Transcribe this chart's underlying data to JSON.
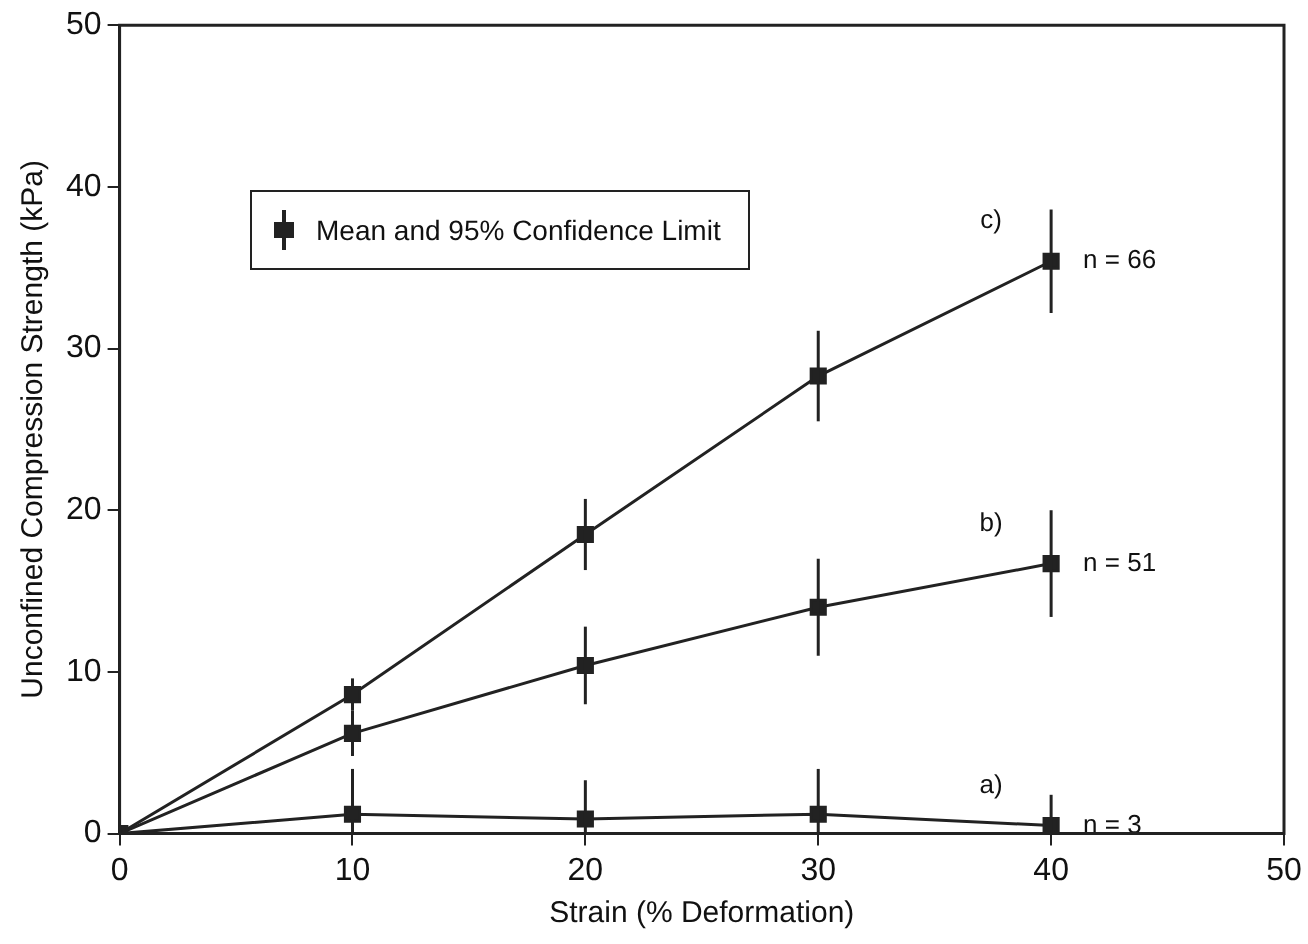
{
  "chart_data": {
    "type": "line",
    "xlabel": "Strain (% Deformation)",
    "ylabel": "Unconfined Compression Strength (kPa)",
    "x": [
      0,
      10,
      20,
      30,
      40
    ],
    "xlim": [
      0,
      50
    ],
    "xticks": [
      0,
      10,
      20,
      30,
      40,
      50
    ],
    "ylim": [
      0,
      50
    ],
    "yticks": [
      0,
      10,
      20,
      30,
      40,
      50
    ],
    "grid": false,
    "legend": false,
    "marker": "square",
    "line_style": "solid",
    "series": [
      {
        "name": "c)",
        "color": "#222222",
        "values": [
          0,
          8.6,
          18.5,
          28.3,
          35.4
        ],
        "errors": [
          null,
          1,
          2.2,
          2.8,
          3.2
        ]
      },
      {
        "name": "b)",
        "color": "#222222",
        "values": [
          0,
          6.2,
          10.4,
          14.0,
          16.7
        ],
        "errors": [
          null,
          1.4,
          2.4,
          3,
          3.3
        ]
      },
      {
        "name": "a)",
        "color": "#222222",
        "values": [
          0,
          1.2,
          0.9,
          1.2,
          0.5
        ],
        "errors": [
          null,
          [
            0,
            4.0
          ],
          [
            0,
            3.3
          ],
          [
            0,
            4.0
          ],
          [
            0,
            2.4
          ]
        ]
      }
    ],
    "annotations": [
      "Mean and 95% Confidence Limit",
      "n = 66",
      "n = 51",
      "n = 3"
    ]
  }
}
